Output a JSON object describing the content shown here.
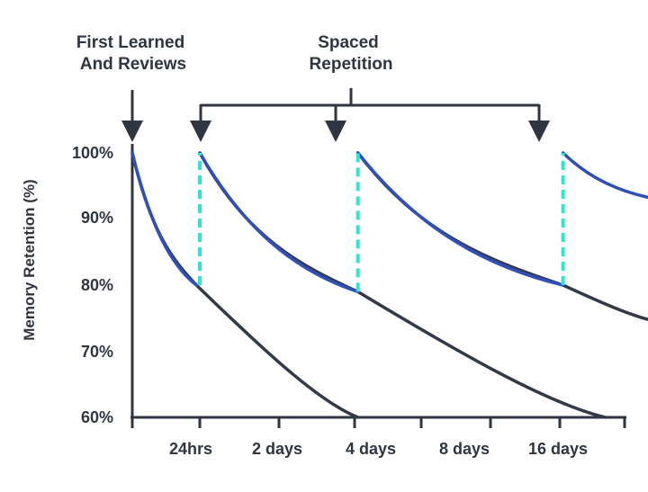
{
  "chart_data": {
    "type": "line",
    "title": "",
    "ylabel": "Memory Retention (%)",
    "xlabel": "",
    "ylim": [
      60,
      100
    ],
    "y_ticks": [
      "100%",
      "90%",
      "80%",
      "70%",
      "60%"
    ],
    "y_tick_values": [
      100,
      90,
      80,
      70,
      60
    ],
    "x_ticks": [
      "24hrs",
      "2 days",
      "4 days",
      "8 days",
      "16 days"
    ],
    "annotations": {
      "first_learned": [
        "First Learned",
        "And Reviews"
      ],
      "spaced": [
        "Spaced",
        "Repetition"
      ]
    },
    "review_points": [
      "First Learned",
      "24hrs",
      "3 days",
      "15 days"
    ],
    "series": [
      {
        "style": "forgetting",
        "points": [
          [
            0,
            100
          ],
          [
            0.95,
            80
          ],
          [
            3.05,
            60
          ]
        ]
      },
      {
        "style": "forgetting",
        "points": [
          [
            1,
            100
          ],
          [
            3.05,
            79
          ],
          [
            6.7,
            60
          ]
        ]
      },
      {
        "style": "forgetting",
        "points": [
          [
            3.05,
            100
          ],
          [
            6.05,
            80
          ],
          [
            7.5,
            74.5
          ]
        ]
      },
      {
        "style": "retained",
        "points": [
          [
            0,
            100
          ],
          [
            0.95,
            80
          ]
        ]
      },
      {
        "style": "retained",
        "points": [
          [
            1,
            100
          ],
          [
            3.05,
            79
          ]
        ]
      },
      {
        "style": "retained",
        "points": [
          [
            3.05,
            100
          ],
          [
            6.05,
            80
          ]
        ]
      },
      {
        "style": "retained",
        "points": [
          [
            6.05,
            100
          ],
          [
            7.5,
            93
          ]
        ]
      }
    ],
    "review_markers": [
      {
        "x": 1,
        "from": 80,
        "to": 100
      },
      {
        "x": 3.05,
        "from": 79,
        "to": 100
      },
      {
        "x": 6.05,
        "from": 80,
        "to": 100
      }
    ],
    "colors": {
      "forgetting": "#323a47",
      "retained": "#2f4fba",
      "review": "#2fe6cc",
      "axis": "#2f3541"
    }
  }
}
